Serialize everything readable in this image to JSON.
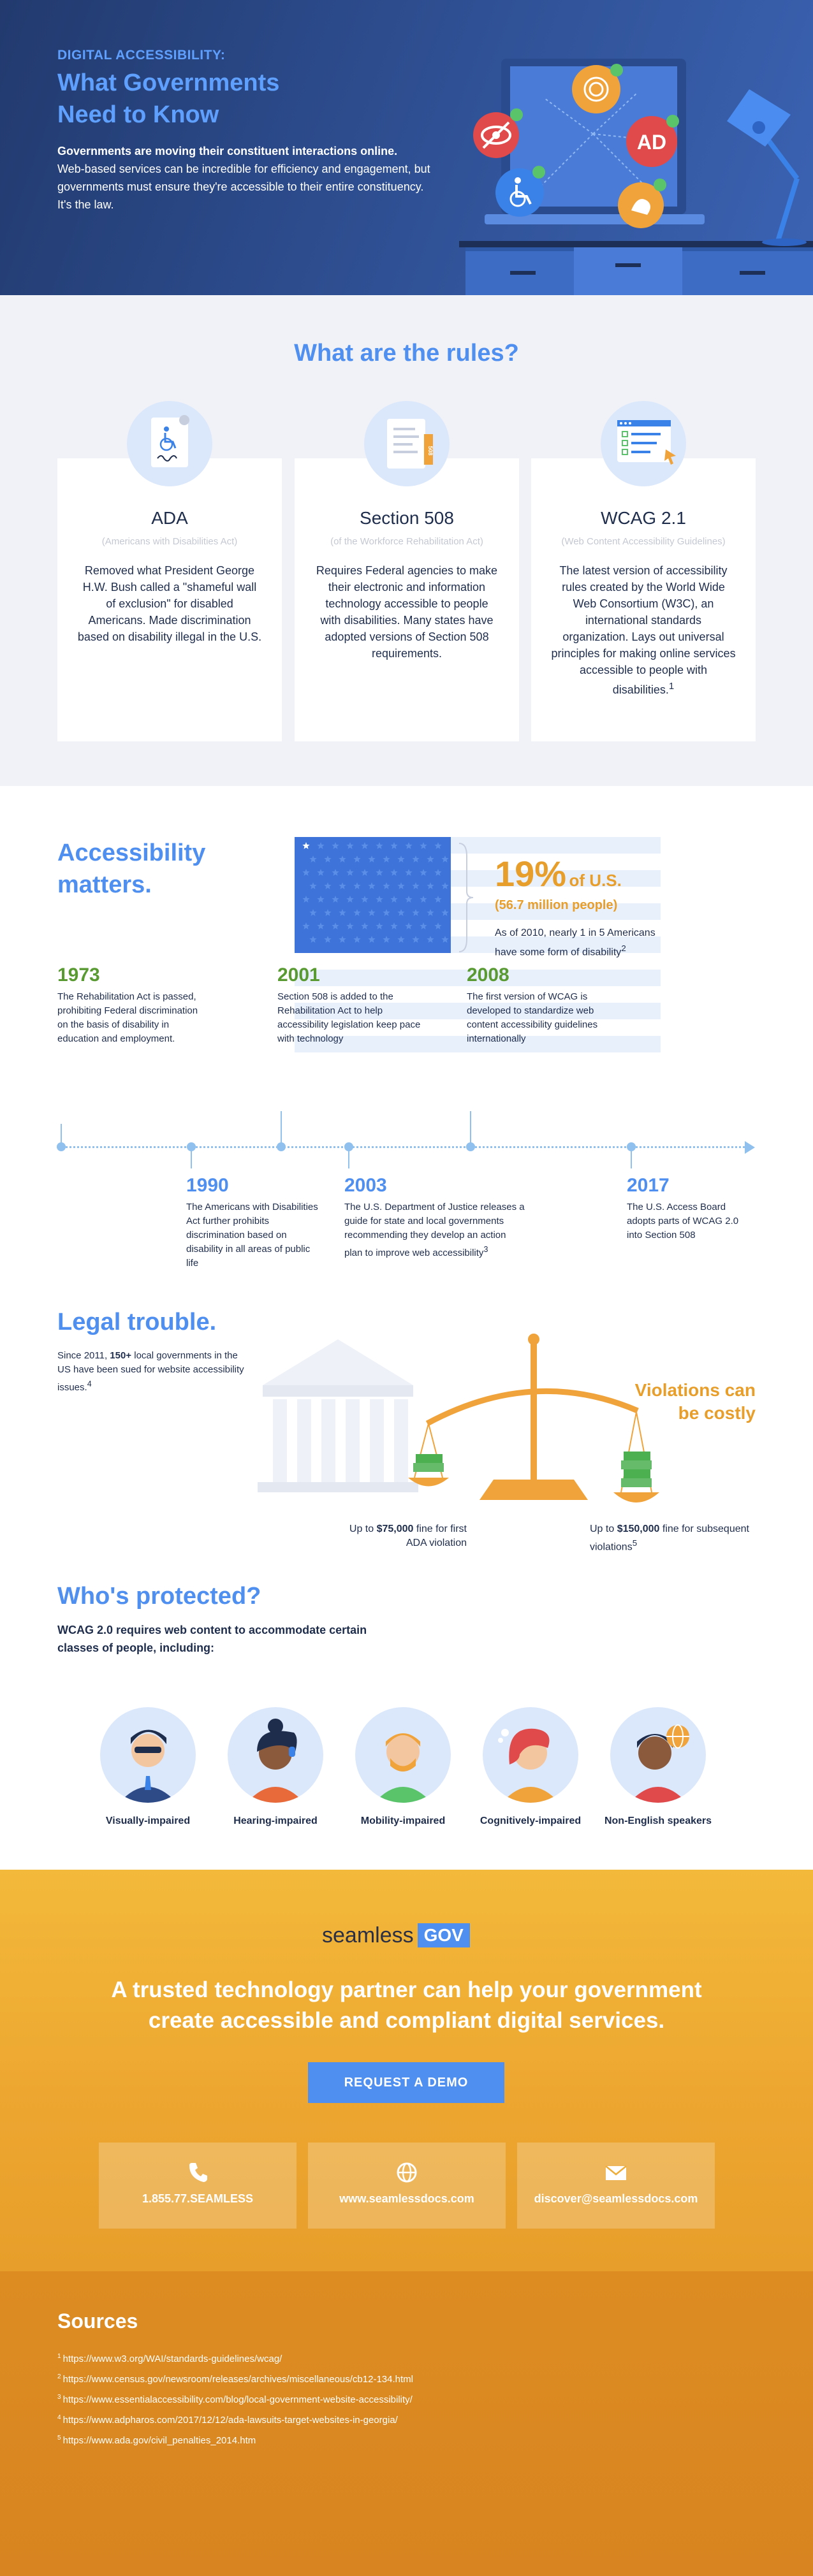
{
  "hero": {
    "kicker": "DIGITAL ACCESSIBILITY:",
    "title_line1": "What Governments",
    "title_line2": "Need to Know",
    "lead": "Governments are moving their constituent interactions online.",
    "body": "Web-based services can be incredible for efficiency and engagement, but governments must ensure they're accessible to their entire constituency. It's the law.",
    "badge_text": "AD"
  },
  "rules": {
    "title": "What are the rules?",
    "cards": [
      {
        "name": "ADA",
        "sub": "(Americans with Disabilities Act)",
        "desc": "Removed what President George H.W. Bush called a \"shameful wall of exclusion\" for disabled Americans. Made discrimination based on disability illegal in the U.S."
      },
      {
        "name": "Section 508",
        "sub": "(of the Workforce Rehabilitation Act)",
        "desc": "Requires Federal agencies to make their electronic and information technology accessible to people with disabilities. Many states have adopted versions of Section 508 requirements.",
        "tab_label": "508"
      },
      {
        "name": "WCAG 2.1",
        "sub": "(Web Content Accessibility Guidelines)",
        "desc": "The latest version of accessibility rules created by the World Wide Web Consortium (W3C), an international standards organization. Lays out universal principles for making online services accessible to people with disabilities.",
        "note": "1"
      }
    ]
  },
  "matters": {
    "title": "Accessibility matters.",
    "stat_big": "19%",
    "stat_unit": "of U.S.",
    "stat_sub": "(56.7 million people)",
    "stat_desc": "As of 2010, nearly 1 in 5 Americans have some form of disability",
    "stat_note": "2",
    "timeline": [
      {
        "year": "1973",
        "text": "The Rehabilitation Act is passed, prohibiting Federal discrimination on the basis of disability in education and employment."
      },
      {
        "year": "1990",
        "text": "The Americans with Disabilities Act further prohibits discrimination based on disability in all areas of public life"
      },
      {
        "year": "2001",
        "text": "Section 508 is added to the Rehabilitation Act to help accessibility legislation keep pace with technology"
      },
      {
        "year": "2003",
        "text": "The U.S. Department of Justice releases a guide for state and local governments recommending they develop an action plan to improve web accessibility",
        "note": "3"
      },
      {
        "year": "2008",
        "text": "The first version of WCAG is developed to standardize web content accessibility guidelines internationally"
      },
      {
        "year": "2017",
        "text": "The U.S. Access Board adopts parts of WCAG 2.0 into Section 508"
      }
    ]
  },
  "legal": {
    "title": "Legal trouble.",
    "desc_pre": "Since 2011, ",
    "desc_bold": "150+",
    "desc_post": " local governments in the US have been sued for website accessibility issues.",
    "desc_note": "4",
    "violations_line1": "Violations can",
    "violations_line2": "be costly",
    "fine1_pre": "Up to ",
    "fine1_amount": "$75,000",
    "fine1_post": " fine for first ADA violation",
    "fine2_pre": "Up to ",
    "fine2_amount": "$150,000",
    "fine2_post": " fine for subsequent violations",
    "fine2_note": "5"
  },
  "protected": {
    "title": "Who's protected?",
    "desc": "WCAG 2.0 requires web content to accommodate certain classes of people, including:",
    "people": [
      {
        "label": "Visually-impaired"
      },
      {
        "label": "Hearing-impaired"
      },
      {
        "label": "Mobility-impaired"
      },
      {
        "label": "Cognitively-impaired"
      },
      {
        "label": "Non-English speakers"
      }
    ]
  },
  "cta": {
    "brand_word": "seamless",
    "brand_gov": "GOV",
    "headline_line1": "A trusted technology partner can help your government",
    "headline_line2": "create accessible and compliant digital services.",
    "button": "REQUEST A DEMO",
    "contacts": [
      {
        "icon": "phone-icon",
        "text": "1.855.77.SEAMLESS"
      },
      {
        "icon": "globe-icon",
        "text": "www.seamlessdocs.com"
      },
      {
        "icon": "mail-icon",
        "text": "discover@seamlessdocs.com"
      }
    ]
  },
  "sources": {
    "title": "Sources",
    "items": [
      {
        "n": "1",
        "url": "https://www.w3.org/WAI/standards-guidelines/wcag/"
      },
      {
        "n": "2",
        "url": "https://www.census.gov/newsroom/releases/archives/miscellaneous/cb12-134.html"
      },
      {
        "n": "3",
        "url": "https://www.essentialaccessibility.com/blog/local-government-website-accessibility/"
      },
      {
        "n": "4",
        "url": "https://www.adpharos.com/2017/12/12/ada-lawsuits-target-websites-in-georgia/"
      },
      {
        "n": "5",
        "url": "https://www.ada.gov/civil_penalties_2014.htm"
      }
    ]
  },
  "colors": {
    "accent_blue": "#4f8ff0",
    "accent_orange": "#e89e2a",
    "accent_green": "#5a9a33",
    "dark_text": "#1f2d4d"
  }
}
